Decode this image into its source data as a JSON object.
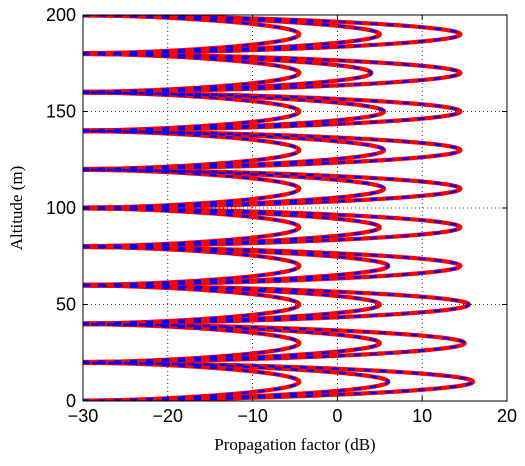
{
  "chart_data": {
    "type": "line",
    "title": "",
    "xlabel": "Propagation factor (dB)",
    "ylabel": "Altitude (m)",
    "xlim": [
      -30,
      20
    ],
    "ylim": [
      0,
      200
    ],
    "xticks": [
      -30,
      -20,
      -10,
      0,
      10,
      20
    ],
    "yticks": [
      0,
      50,
      100,
      150,
      200
    ],
    "xtick_labels": [
      "−30",
      "−20",
      "−10",
      "0",
      "10",
      "20"
    ],
    "ytick_labels": [
      "0",
      "50",
      "100",
      "150",
      "200"
    ],
    "grid": true,
    "legend": "none",
    "series": [
      {
        "style": "solid",
        "color": "#ff0000",
        "points": [
          [
            -30,
            0
          ],
          [
            6,
            10
          ],
          [
            -30,
            20
          ],
          [
            -3,
            30
          ],
          [
            -30,
            40
          ],
          [
            5,
            50
          ],
          [
            -30,
            60
          ],
          [
            13,
            70
          ],
          [
            -30,
            80
          ],
          [
            14,
            90
          ],
          [
            -30,
            100
          ],
          [
            15,
            110
          ],
          [
            -30,
            120
          ],
          [
            14,
            130
          ],
          [
            -30,
            140
          ],
          [
            15,
            150
          ],
          [
            -30,
            160
          ],
          [
            11,
            170
          ],
          [
            -30,
            180
          ],
          [
            6,
            190
          ],
          [
            -30,
            200
          ]
        ]
      },
      {
        "style": "dashed",
        "color": "#0000ff",
        "points": [
          [
            -30,
            0
          ],
          [
            6,
            10
          ],
          [
            -30,
            20
          ],
          [
            -3,
            30
          ],
          [
            -30,
            40
          ],
          [
            5,
            50
          ],
          [
            -30,
            60
          ],
          [
            13,
            70
          ],
          [
            -30,
            80
          ],
          [
            14,
            90
          ],
          [
            -30,
            100
          ],
          [
            15,
            110
          ],
          [
            -30,
            120
          ],
          [
            14,
            130
          ],
          [
            -30,
            140
          ],
          [
            15,
            150
          ],
          [
            -30,
            160
          ],
          [
            11,
            170
          ],
          [
            -30,
            180
          ],
          [
            6,
            190
          ],
          [
            -30,
            200
          ]
        ]
      }
    ],
    "lobes": [
      {
        "y0": 0,
        "y1": 20,
        "peaks": [
          -4.5,
          6,
          16
        ]
      },
      {
        "y0": 20,
        "y1": 40,
        "peaks": [
          -4.5,
          5,
          15
        ]
      },
      {
        "y0": 40,
        "y1": 60,
        "peaks": [
          -4.5,
          5,
          15.5
        ]
      },
      {
        "y0": 60,
        "y1": 80,
        "peaks": [
          -4.5,
          6,
          14.5
        ]
      },
      {
        "y0": 80,
        "y1": 100,
        "peaks": [
          -4.5,
          5,
          14.5
        ]
      },
      {
        "y0": 100,
        "y1": 120,
        "peaks": [
          -4.5,
          5.5,
          14.5
        ]
      },
      {
        "y0": 120,
        "y1": 140,
        "peaks": [
          -4.5,
          5.5,
          14.5
        ]
      },
      {
        "y0": 140,
        "y1": 160,
        "peaks": [
          -4.5,
          5.5,
          14.5
        ]
      },
      {
        "y0": 160,
        "y1": 180,
        "peaks": [
          -4.5,
          4,
          14.5
        ]
      },
      {
        "y0": 180,
        "y1": 200,
        "peaks": [
          -4.5,
          5,
          14.5
        ]
      }
    ],
    "colors": {
      "solid": "#ff0000",
      "dashed": "#0000ff",
      "grid": "#000000"
    }
  }
}
